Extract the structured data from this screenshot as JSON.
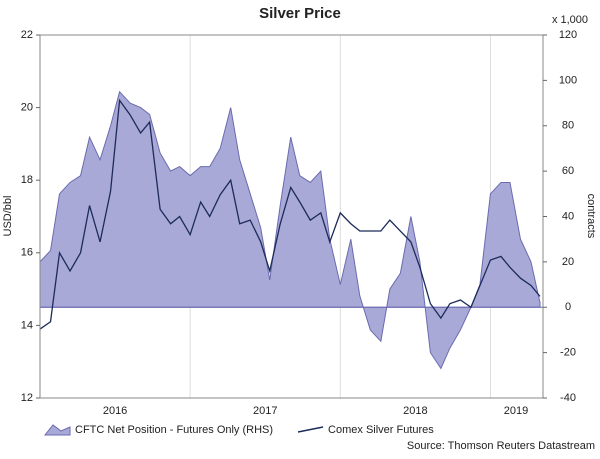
{
  "chart_data": {
    "type": "line",
    "title": "Silver Price",
    "y_label": "USD/bbl",
    "y2_label": "contracts",
    "y2_unit": "x 1,000",
    "source": "Source: Thomson Reuters Datastream",
    "x": [
      2016,
      2016.07,
      2016.13,
      2016.2,
      2016.27,
      2016.33,
      2016.4,
      2016.47,
      2016.53,
      2016.6,
      2016.67,
      2016.73,
      2016.8,
      2016.87,
      2016.93,
      2017,
      2017.07,
      2017.13,
      2017.2,
      2017.27,
      2017.33,
      2017.4,
      2017.47,
      2017.53,
      2017.6,
      2017.67,
      2017.73,
      2017.8,
      2017.87,
      2017.93,
      2018,
      2018.07,
      2018.13,
      2018.2,
      2018.27,
      2018.33,
      2018.4,
      2018.47,
      2018.53,
      2018.6,
      2018.67,
      2018.73,
      2018.8,
      2018.87,
      2018.93,
      2019,
      2019.07,
      2019.13,
      2019.2,
      2019.27,
      2019.33
    ],
    "xlim": [
      2016,
      2019.35
    ],
    "xticks": [
      {
        "value": 2016.5,
        "label": "2016"
      },
      {
        "value": 2017.5,
        "label": "2017"
      },
      {
        "value": 2018.5,
        "label": "2018"
      },
      {
        "value": 2019.17,
        "label": "2019"
      }
    ],
    "xgrid": [
      2017,
      2018,
      2019
    ],
    "ylim": [
      12,
      22
    ],
    "yticks": [
      12,
      14,
      16,
      18,
      20,
      22
    ],
    "y2lim": [
      -40,
      120
    ],
    "y2ticks": [
      -40,
      -20,
      0,
      20,
      40,
      60,
      80,
      100,
      120
    ],
    "series": [
      {
        "name": "CFTC Net Position - Futures Only (RHS)",
        "type": "area",
        "axis": "y2",
        "color": "#a9a9d8",
        "edge": "#6a6ab0",
        "values": [
          20,
          25,
          50,
          55,
          58,
          75,
          65,
          80,
          95,
          90,
          88,
          85,
          68,
          60,
          62,
          58,
          62,
          62,
          70,
          88,
          65,
          50,
          35,
          12,
          45,
          75,
          58,
          55,
          60,
          30,
          10,
          30,
          5,
          -10,
          -15,
          8,
          15,
          40,
          20,
          -20,
          -27,
          -18,
          -10,
          0,
          10,
          50,
          55,
          55,
          30,
          20,
          2
        ]
      },
      {
        "name": "Comex Silver Futures",
        "type": "line",
        "color": "#1c2b5a",
        "values": [
          13.9,
          14.1,
          16.0,
          15.5,
          16.0,
          17.3,
          16.3,
          17.7,
          20.2,
          19.8,
          19.3,
          19.6,
          17.2,
          16.8,
          17.0,
          16.5,
          17.4,
          17.0,
          17.6,
          18.0,
          16.8,
          16.9,
          16.3,
          15.5,
          16.8,
          17.8,
          17.4,
          16.9,
          17.1,
          16.3,
          17.1,
          16.8,
          16.6,
          16.6,
          16.6,
          16.9,
          16.6,
          16.3,
          15.6,
          14.6,
          14.2,
          14.6,
          14.7,
          14.5,
          15.1,
          15.8,
          15.9,
          15.6,
          15.3,
          15.1,
          14.8
        ]
      }
    ]
  }
}
